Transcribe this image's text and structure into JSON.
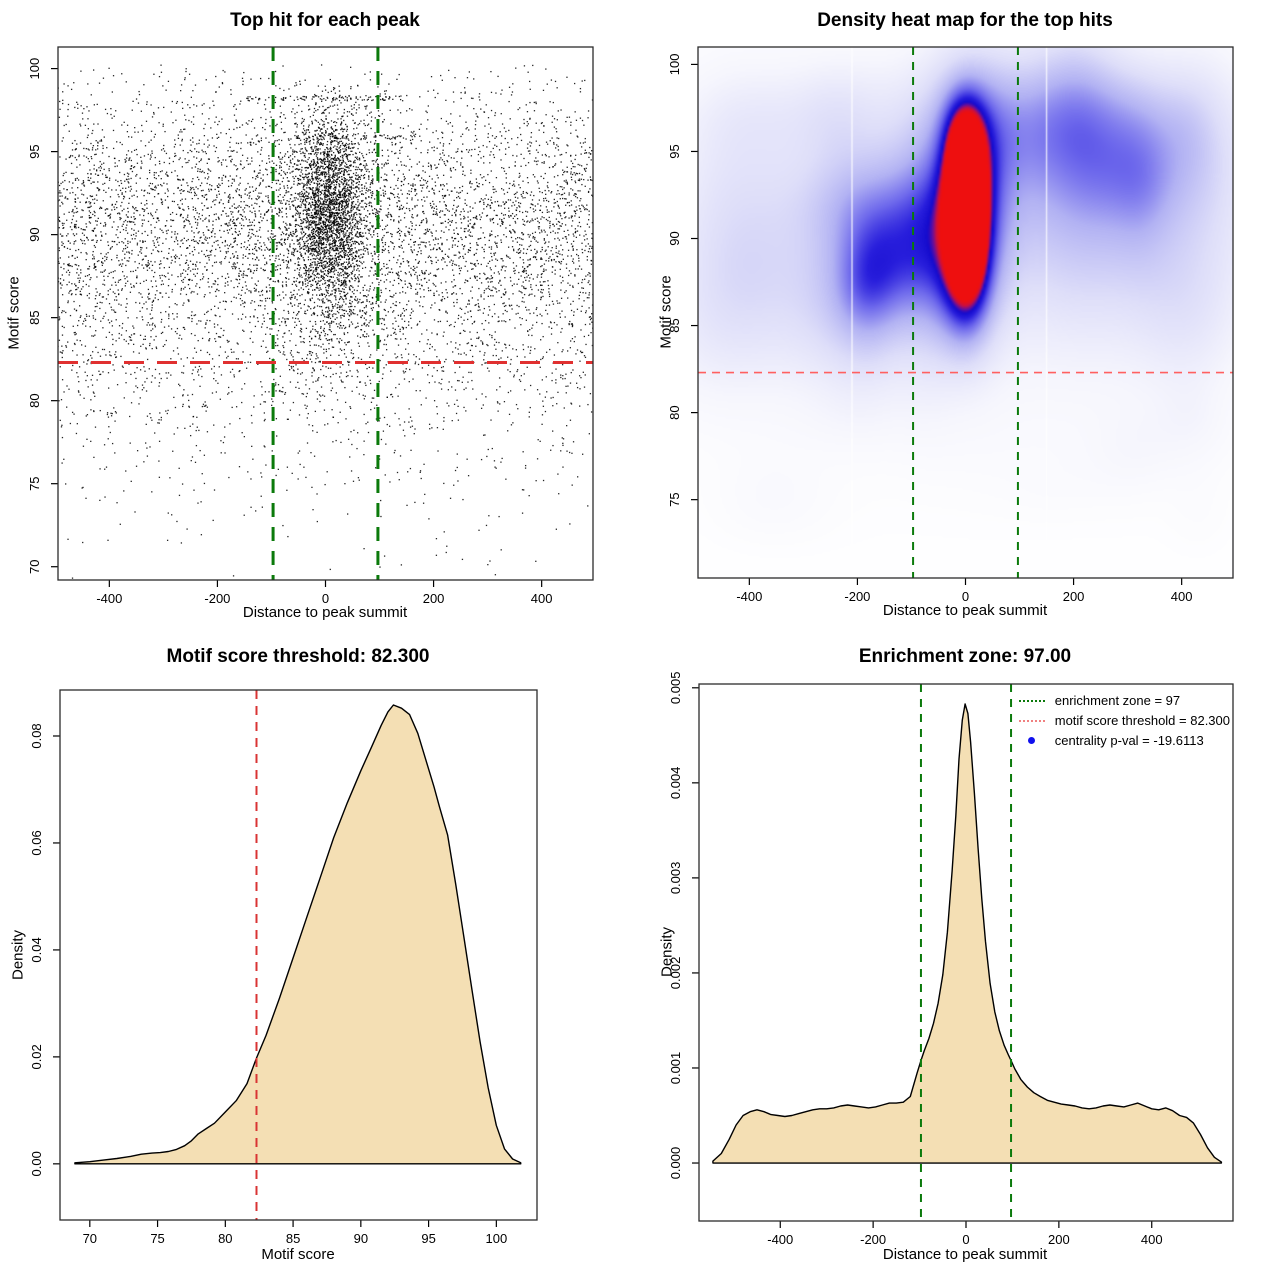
{
  "colors": {
    "point_color": "#000000",
    "point_alpha": 0.85,
    "green_line": "#0b7a0b",
    "red_line": "#e03030",
    "heat_red_line": "#ff6060",
    "density_red_line": "#d93434",
    "legend_green": "#0b7a0b",
    "legend_red": "#f08080",
    "legend_blue": "#1010ee",
    "density_fill": "#f4dfb4",
    "density_stroke": "#000000",
    "box_color": "#2b2b2b",
    "background": "#ffffff"
  },
  "values": {
    "motif_score_threshold": 82.3,
    "enrichment_zone": 97,
    "centrality_pval": -19.6113
  },
  "chart_data": [
    {
      "type": "scatter",
      "title": "Top hit for each peak",
      "xlabel": "Distance to peak summit",
      "ylabel": "Motif score",
      "xlim": [
        -495,
        495
      ],
      "ylim": [
        69.2,
        101.3
      ],
      "xticks": [
        -400,
        -200,
        0,
        200,
        400
      ],
      "yticks": [
        70,
        75,
        80,
        85,
        90,
        95,
        100
      ],
      "vlines": [
        -97,
        97
      ],
      "hlines": [
        82.3
      ],
      "n_points_approx": 9850,
      "generator": {
        "seed": 1234,
        "groups": [
          {
            "n": 5200,
            "x": {
              "dist": "uniform",
              "min": -500,
              "max": 500
            },
            "y": {
              "dist": "normal",
              "mean": 90.8,
              "sd": 4.2,
              "min": 69.5,
              "max": 100.3
            }
          },
          {
            "n": 1400,
            "x": {
              "dist": "uniform",
              "min": -500,
              "max": 500
            },
            "y": {
              "dist": "normal",
              "mean": 82.5,
              "sd": 5.2,
              "min": 69.3,
              "max": 100.0
            }
          },
          {
            "n": 2400,
            "x": {
              "dist": "normal",
              "mean": 6,
              "sd": 32,
              "min": -200,
              "max": 200
            },
            "y": {
              "dist": "normal",
              "mean": 91.6,
              "sd": 2.9,
              "min": 80,
              "max": 99.7
            }
          },
          {
            "n": 700,
            "x": {
              "dist": "normal",
              "mean": 6,
              "sd": 60,
              "min": -260,
              "max": 260
            },
            "y": {
              "dist": "normal",
              "mean": 88.8,
              "sd": 4.2,
              "min": 74,
              "max": 99.3
            }
          },
          {
            "n": 90,
            "x": {
              "dist": "uniform",
              "min": -150,
              "max": 150
            },
            "y": {
              "dist": "const",
              "value": 98.25,
              "jitter": 0.15
            }
          },
          {
            "n": 60,
            "x": {
              "dist": "uniform",
              "min": -60,
              "max": 160
            },
            "y": {
              "dist": "const",
              "value": 95.9,
              "jitter": 0.12
            }
          }
        ]
      }
    },
    {
      "type": "heatmap",
      "title": "Density heat map for the top hits",
      "xlabel": "Distance to peak summit",
      "ylabel": "Motif score",
      "xlim": [
        -495,
        495
      ],
      "ylim": [
        70.5,
        101
      ],
      "xticks": [
        -400,
        -200,
        0,
        200,
        400
      ],
      "yticks": [
        75,
        80,
        85,
        90,
        95,
        100
      ],
      "vlines": [
        -97,
        97
      ],
      "hlines": [
        82.3
      ],
      "t_max": 1.45,
      "color_stops": [
        [
          0.0,
          [
            255,
            255,
            255
          ]
        ],
        [
          0.1,
          [
            246,
            246,
            253
          ]
        ],
        [
          0.25,
          [
            222,
            222,
            249
          ]
        ],
        [
          0.42,
          [
            178,
            178,
            243
          ]
        ],
        [
          0.58,
          [
            110,
            105,
            236
          ]
        ],
        [
          0.72,
          [
            40,
            30,
            220
          ]
        ],
        [
          0.8,
          [
            20,
            10,
            205
          ]
        ],
        [
          0.86,
          [
            110,
            15,
            150
          ]
        ],
        [
          0.92,
          [
            205,
            15,
            60
          ]
        ],
        [
          1.0,
          [
            238,
            15,
            15
          ]
        ]
      ],
      "blobs_main": [
        {
          "cx": 2,
          "cy": 92.6,
          "sx": 27,
          "sy": 2.7,
          "a": 1.0
        },
        {
          "cx": 2,
          "cy": 90.2,
          "sx": 25,
          "sy": 2.3,
          "a": 0.8
        },
        {
          "cx": 0,
          "cy": 94.6,
          "sx": 23,
          "sy": 1.9,
          "a": 0.6
        },
        {
          "cx": 4,
          "cy": 88.0,
          "sx": 26,
          "sy": 2.1,
          "a": 0.42
        },
        {
          "cx": 0,
          "cy": 96.3,
          "sx": 28,
          "sy": 1.7,
          "a": 0.27
        },
        {
          "cx": 2,
          "cy": 91.8,
          "sx": 52,
          "sy": 5.2,
          "a": 0.38
        },
        {
          "cx": 2,
          "cy": 86.0,
          "sx": 40,
          "sy": 2.5,
          "a": 0.2
        }
      ],
      "blobs_wash": [
        {
          "cx": -265,
          "cy": 90.5,
          "sx": 185,
          "sy": 5.6,
          "a": 0.16
        },
        {
          "cx": 265,
          "cy": 89.5,
          "sx": 185,
          "sy": 5.6,
          "a": 0.15
        },
        {
          "cx": 0,
          "cy": 88.5,
          "sx": 430,
          "sy": 8.5,
          "a": 0.11
        },
        {
          "cx": -440,
          "cy": 93.5,
          "sx": 85,
          "sy": 5,
          "a": 0.13
        },
        {
          "cx": 445,
          "cy": 92.5,
          "sx": 85,
          "sy": 5,
          "a": 0.12
        },
        {
          "cx": -180,
          "cy": 97.5,
          "sx": 120,
          "sy": 2.5,
          "a": 0.1
        },
        {
          "cx": 150,
          "cy": 97.8,
          "sx": 130,
          "sy": 2.2,
          "a": 0.09
        }
      ],
      "blobs_random": {
        "seed": 7,
        "upper": {
          "count": 44,
          "x": [
            -490,
            490
          ],
          "y": [
            83.5,
            99
          ],
          "sx": [
            35,
            95
          ],
          "sy": [
            1.6,
            4.2
          ],
          "a": [
            0.05,
            0.13
          ]
        },
        "lower": {
          "count": 10,
          "x": [
            -450,
            450
          ],
          "y": [
            73.5,
            81
          ],
          "sx": [
            40,
            100
          ],
          "sy": [
            1.2,
            2.6
          ],
          "a": [
            0.015,
            0.045
          ]
        }
      },
      "artifact_white_lines": [
        -210,
        150
      ]
    },
    {
      "type": "area",
      "title": "Motif score threshold: 82.300",
      "xlabel": "Motif score",
      "ylabel": "Density",
      "xlim": [
        67.8,
        103.0
      ],
      "ylim": [
        -0.0105,
        0.0886
      ],
      "xticks": [
        70,
        75,
        80,
        85,
        90,
        95,
        100
      ],
      "ytick_values": [
        0.0,
        0.02,
        0.04,
        0.06,
        0.08
      ],
      "ytick_labels": [
        "0.00",
        "0.02",
        "0.04",
        "0.06",
        "0.08"
      ],
      "vlines_red": [
        82.3
      ],
      "curve": {
        "x": [
          68.9,
          70,
          71,
          72,
          73,
          73.8,
          74.6,
          75.2,
          75.8,
          76.4,
          77,
          77.5,
          78,
          78.6,
          79.2,
          80,
          80.8,
          81.6,
          82.3,
          83,
          84,
          85,
          86,
          87,
          88,
          89,
          90,
          90.8,
          91.5,
          92,
          92.4,
          93,
          93.6,
          94.2,
          94.8,
          95.4,
          95.8,
          96.4,
          97,
          97.6,
          98.2,
          98.8,
          99.4,
          100,
          100.6,
          101.2,
          101.8
        ],
        "y": [
          0.0002,
          0.0004,
          0.0007,
          0.001,
          0.0014,
          0.0018,
          0.002,
          0.0021,
          0.0023,
          0.0027,
          0.0034,
          0.0043,
          0.0056,
          0.0066,
          0.0076,
          0.0097,
          0.0118,
          0.015,
          0.0198,
          0.024,
          0.031,
          0.0385,
          0.046,
          0.0535,
          0.061,
          0.0675,
          0.0735,
          0.078,
          0.082,
          0.0845,
          0.0858,
          0.0852,
          0.084,
          0.0805,
          0.0755,
          0.0705,
          0.0668,
          0.0615,
          0.0523,
          0.0425,
          0.0325,
          0.0228,
          0.0142,
          0.0072,
          0.0028,
          0.0009,
          0.0002
        ]
      }
    },
    {
      "type": "area",
      "title": "Enrichment zone: 97.00",
      "xlabel": "Distance to peak summit",
      "ylabel": "Density",
      "xlim": [
        -575,
        575
      ],
      "ylim": [
        -0.00061,
        0.00504
      ],
      "xticks": [
        -400,
        -200,
        0,
        200,
        400
      ],
      "ytick_values": [
        0.0,
        0.001,
        0.002,
        0.003,
        0.004,
        0.005
      ],
      "ytick_labels": [
        "0.000",
        "0.001",
        "0.002",
        "0.003",
        "0.004",
        "0.005"
      ],
      "vlines_green": [
        -97,
        97
      ],
      "curve": {
        "x": [
          -545,
          -527,
          -510,
          -495,
          -480,
          -465,
          -450,
          -435,
          -420,
          -405,
          -390,
          -375,
          -360,
          -345,
          -330,
          -315,
          -300,
          -285,
          -270,
          -255,
          -240,
          -225,
          -210,
          -195,
          -180,
          -165,
          -150,
          -135,
          -120,
          -105,
          -97,
          -90,
          -80,
          -70,
          -60,
          -50,
          -40,
          -30,
          -22,
          -15,
          -8,
          -2,
          4,
          10,
          18,
          26,
          34,
          42,
          52,
          62,
          72,
          82,
          92,
          97,
          105,
          118,
          132,
          146,
          160,
          175,
          190,
          205,
          220,
          235,
          250,
          265,
          280,
          295,
          310,
          325,
          340,
          355,
          370,
          385,
          400,
          415,
          430,
          445,
          460,
          475,
          490,
          505,
          520,
          535,
          550
        ],
        "y": [
          2e-05,
          0.0001,
          0.00025,
          0.0004,
          0.0005,
          0.00054,
          0.00056,
          0.00054,
          0.00051,
          0.0005,
          0.00049,
          0.0005,
          0.00052,
          0.00054,
          0.00056,
          0.00057,
          0.00057,
          0.00058,
          0.0006,
          0.00061,
          0.0006,
          0.00059,
          0.00058,
          0.00059,
          0.00061,
          0.00063,
          0.00063,
          0.00064,
          0.0007,
          0.00095,
          0.00108,
          0.00118,
          0.00131,
          0.00147,
          0.00168,
          0.00198,
          0.00243,
          0.00307,
          0.00365,
          0.00425,
          0.00466,
          0.00483,
          0.00473,
          0.00443,
          0.00389,
          0.00331,
          0.00278,
          0.00233,
          0.00189,
          0.00159,
          0.00139,
          0.00124,
          0.00113,
          0.00108,
          0.00099,
          0.00088,
          0.0008,
          0.00074,
          0.0007,
          0.00066,
          0.00064,
          0.00062,
          0.00061,
          0.0006,
          0.00058,
          0.00057,
          0.00058,
          0.0006,
          0.00061,
          0.0006,
          0.00059,
          0.00061,
          0.00063,
          0.0006,
          0.00057,
          0.00056,
          0.00058,
          0.00055,
          0.0005,
          0.00048,
          0.00042,
          0.0003,
          0.00016,
          6e-05,
          1e-05
        ]
      },
      "legend": [
        {
          "swatch": "green-dotted",
          "label": "enrichment zone = 97"
        },
        {
          "swatch": "red-dotted",
          "label": "motif score threshold = 82.300"
        },
        {
          "swatch": "blue-dot",
          "label": "centrality p-val = -19.6113"
        }
      ]
    }
  ]
}
